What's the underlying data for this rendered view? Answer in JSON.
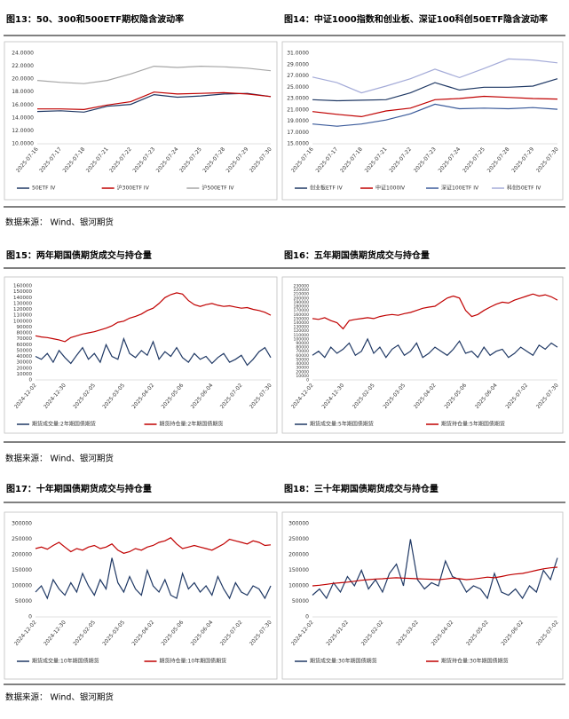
{
  "document": {
    "sources": [
      "数据来源： Wind、银河期货",
      "数据来源： Wind、银河期货",
      "数据来源： Wind、银河期货"
    ]
  },
  "chart_data": [
    {
      "type": "line",
      "title": "图13：50、300和500ETF期权隐含波动率",
      "categories": [
        "2025-07-16",
        "2025-07-17",
        "2025-07-18",
        "2025-07-21",
        "2025-07-22",
        "2025-07-23",
        "2025-07-24",
        "2025-07-25",
        "2025-07-28",
        "2025-07-29",
        "2025-07-30"
      ],
      "ylim": [
        10,
        24
      ],
      "yticks": [
        {
          "value": 10,
          "label": "10.0000"
        },
        {
          "value": 12,
          "label": "12.0000"
        },
        {
          "value": 14,
          "label": "14.0000"
        },
        {
          "value": 16,
          "label": "16.0000"
        },
        {
          "value": 18,
          "label": "18.0000"
        },
        {
          "value": 20,
          "label": "20.0000"
        },
        {
          "value": 22,
          "label": "22.0000"
        },
        {
          "value": 24,
          "label": "24.0000"
        }
      ],
      "series": [
        {
          "name": "50ETF IV",
          "color": "#1f3864",
          "values": [
            15.0,
            15.1,
            14.9,
            15.8,
            16.1,
            17.6,
            17.2,
            17.4,
            17.7,
            17.8,
            17.3
          ]
        },
        {
          "name": "沪300ETF IV",
          "color": "#c00000",
          "values": [
            15.4,
            15.4,
            15.3,
            16.0,
            16.5,
            18.0,
            17.7,
            17.8,
            17.9,
            17.7,
            17.3
          ]
        },
        {
          "name": "沪500ETF IV",
          "color": "#a6a6a6",
          "values": [
            19.8,
            19.5,
            19.3,
            19.8,
            20.8,
            22.0,
            21.8,
            22.0,
            21.9,
            21.7,
            21.3
          ]
        }
      ]
    },
    {
      "type": "line",
      "title": "图14：中证1000指数和创业板、深证100科创50ETF隐含波动率",
      "categories": [
        "2025-07-16",
        "2025-07-17",
        "2025-07-18",
        "2025-07-21",
        "2025-07-22",
        "2025-07-23",
        "2025-07-24",
        "2025-07-25",
        "2025-07-28",
        "2025-07-29",
        "2025-07-30"
      ],
      "ylim": [
        15,
        31
      ],
      "yticks": [
        {
          "value": 15,
          "label": "15.0000"
        },
        {
          "value": 17,
          "label": "17.0000"
        },
        {
          "value": 19,
          "label": "19.0000"
        },
        {
          "value": 21,
          "label": "21.0000"
        },
        {
          "value": 23,
          "label": "23.0000"
        },
        {
          "value": 25,
          "label": "25.0000"
        },
        {
          "value": 27,
          "label": "27.0000"
        },
        {
          "value": 29,
          "label": "29.0000"
        },
        {
          "value": 31,
          "label": "31.0000"
        }
      ],
      "series": [
        {
          "name": "创业板ETF IV",
          "color": "#1f3864",
          "values": [
            22.8,
            22.6,
            22.7,
            22.8,
            24.0,
            25.8,
            24.5,
            25.0,
            25.0,
            25.2,
            26.5
          ]
        },
        {
          "name": "中证1000IV",
          "color": "#c00000",
          "values": [
            20.7,
            20.2,
            19.8,
            20.8,
            21.3,
            22.8,
            23.0,
            23.4,
            23.2,
            23.0,
            22.9
          ]
        },
        {
          "name": "深证100ETF IV",
          "color": "#3a5a9a",
          "values": [
            18.5,
            18.1,
            18.5,
            19.2,
            20.3,
            22.0,
            21.2,
            21.3,
            21.2,
            21.4,
            21.1
          ]
        },
        {
          "name": "科创50ETF IV",
          "color": "#a4abd8",
          "values": [
            26.8,
            25.8,
            24.0,
            25.2,
            26.5,
            28.2,
            26.7,
            28.3,
            30.0,
            29.8,
            29.3
          ]
        }
      ]
    },
    {
      "type": "line",
      "title": "图15：两年期国债期货成交与持仓量",
      "categories": [
        "2024-12-02",
        null,
        null,
        null,
        null,
        "2024-12-30",
        null,
        null,
        null,
        null,
        "2025-02-05",
        null,
        null,
        null,
        null,
        "2025-03-05",
        null,
        null,
        null,
        null,
        "2025-04-02",
        null,
        null,
        null,
        null,
        "2025-05-06",
        null,
        null,
        null,
        null,
        "2025-06-04",
        null,
        null,
        null,
        null,
        "2025-07-02",
        null,
        null,
        null,
        null,
        "2025-07-30"
      ],
      "ylim": [
        0,
        160000
      ],
      "yticks": [
        0,
        10000,
        20000,
        30000,
        40000,
        50000,
        60000,
        70000,
        80000,
        90000,
        100000,
        110000,
        120000,
        130000,
        140000,
        150000,
        160000
      ],
      "series": [
        {
          "name": "期货成交量:2年期国债期货",
          "color": "#1f3864",
          "values": [
            40000,
            35000,
            45000,
            30000,
            50000,
            38000,
            28000,
            42000,
            55000,
            35000,
            45000,
            30000,
            60000,
            40000,
            35000,
            70000,
            45000,
            38000,
            50000,
            42000,
            65000,
            35000,
            48000,
            40000,
            55000,
            38000,
            30000,
            45000,
            35000,
            40000,
            28000,
            38000,
            45000,
            30000,
            35000,
            42000,
            25000,
            35000,
            48000,
            55000,
            38000
          ]
        },
        {
          "name": "期货持仓量:2年期国债期货",
          "color": "#c00000",
          "values": [
            75000,
            73000,
            72000,
            70000,
            68000,
            65000,
            72000,
            75000,
            78000,
            80000,
            82000,
            85000,
            88000,
            92000,
            98000,
            100000,
            105000,
            108000,
            112000,
            118000,
            122000,
            130000,
            140000,
            145000,
            148000,
            146000,
            135000,
            128000,
            125000,
            128000,
            130000,
            127000,
            125000,
            126000,
            124000,
            122000,
            123000,
            120000,
            118000,
            115000,
            110000
          ]
        }
      ]
    },
    {
      "type": "line",
      "title": "图16：五年期国债期货成交与持仓量",
      "categories": [
        "2024-12-02",
        null,
        null,
        null,
        null,
        "2024-12-30",
        null,
        null,
        null,
        null,
        "2025-02-05",
        null,
        null,
        null,
        null,
        "2025-03-05",
        null,
        null,
        null,
        null,
        "2025-04-02",
        null,
        null,
        null,
        null,
        "2025-05-06",
        null,
        null,
        null,
        null,
        "2025-06-04",
        null,
        null,
        null,
        null,
        "2025-07-02",
        null,
        null,
        null,
        null,
        "2025-07-30"
      ],
      "ylim": [
        0,
        230000
      ],
      "yticks": [
        0,
        10000,
        20000,
        30000,
        40000,
        50000,
        60000,
        70000,
        80000,
        90000,
        100000,
        110000,
        120000,
        130000,
        140000,
        150000,
        160000,
        170000,
        180000,
        190000,
        200000,
        210000,
        220000,
        230000
      ],
      "series": [
        {
          "name": "期货成交量:5年期国债期货",
          "color": "#1f3864",
          "values": [
            60000,
            70000,
            55000,
            80000,
            65000,
            75000,
            90000,
            60000,
            70000,
            100000,
            65000,
            80000,
            55000,
            75000,
            85000,
            60000,
            70000,
            90000,
            55000,
            65000,
            80000,
            70000,
            60000,
            75000,
            95000,
            65000,
            70000,
            55000,
            80000,
            60000,
            70000,
            75000,
            55000,
            65000,
            80000,
            70000,
            60000,
            85000,
            75000,
            90000,
            80000
          ]
        },
        {
          "name": "期货持仓量:5年期国债期货",
          "color": "#c00000",
          "values": [
            150000,
            148000,
            152000,
            145000,
            140000,
            125000,
            145000,
            148000,
            150000,
            152000,
            150000,
            155000,
            158000,
            160000,
            158000,
            162000,
            165000,
            170000,
            175000,
            178000,
            180000,
            190000,
            200000,
            205000,
            200000,
            170000,
            155000,
            160000,
            170000,
            178000,
            185000,
            190000,
            188000,
            195000,
            200000,
            205000,
            210000,
            205000,
            208000,
            203000,
            195000
          ]
        }
      ]
    },
    {
      "type": "line",
      "title": "图17：十年期国债期货成交与持仓量",
      "categories": [
        "2024-12-02",
        null,
        null,
        null,
        null,
        "2024-12-30",
        null,
        null,
        null,
        null,
        "2025-02-05",
        null,
        null,
        null,
        null,
        "2025-03-05",
        null,
        null,
        null,
        null,
        "2025-04-02",
        null,
        null,
        null,
        null,
        "2025-05-06",
        null,
        null,
        null,
        null,
        "2025-06-04",
        null,
        null,
        null,
        null,
        "2025-07-02",
        null,
        null,
        null,
        null,
        "2025-07-30"
      ],
      "ylim": [
        0,
        300000
      ],
      "yticks": [
        0,
        50000,
        100000,
        150000,
        200000,
        250000,
        300000
      ],
      "series": [
        {
          "name": "期货成交量:10年期国债期货",
          "color": "#1f3864",
          "values": [
            80000,
            100000,
            60000,
            120000,
            90000,
            70000,
            110000,
            80000,
            140000,
            100000,
            70000,
            120000,
            90000,
            190000,
            110000,
            80000,
            130000,
            90000,
            70000,
            150000,
            100000,
            80000,
            120000,
            70000,
            60000,
            140000,
            90000,
            110000,
            80000,
            100000,
            70000,
            130000,
            90000,
            60000,
            110000,
            80000,
            70000,
            100000,
            90000,
            60000,
            100000
          ]
        },
        {
          "name": "期货持仓量:10年期国债期货",
          "color": "#c00000",
          "values": [
            220000,
            225000,
            218000,
            230000,
            240000,
            225000,
            210000,
            220000,
            215000,
            225000,
            230000,
            220000,
            225000,
            235000,
            215000,
            205000,
            210000,
            220000,
            215000,
            225000,
            230000,
            240000,
            245000,
            255000,
            235000,
            220000,
            225000,
            230000,
            225000,
            220000,
            215000,
            225000,
            235000,
            250000,
            245000,
            240000,
            235000,
            245000,
            240000,
            230000,
            232000
          ]
        }
      ]
    },
    {
      "type": "line",
      "title": "图18：三十年期国债期货成交与持仓量",
      "categories": [
        "2024-12-02",
        null,
        null,
        null,
        null,
        "2025-01-02",
        null,
        null,
        null,
        null,
        "2025-02-02",
        null,
        null,
        null,
        null,
        "2025-03-02",
        null,
        null,
        null,
        null,
        "2025-04-02",
        null,
        null,
        null,
        null,
        "2025-05-02",
        null,
        null,
        null,
        null,
        "2025-06-02",
        null,
        null,
        null,
        null,
        "2025-07-02"
      ],
      "ylim": [
        0,
        300000
      ],
      "yticks": [
        0,
        50000,
        100000,
        150000,
        200000,
        250000,
        300000
      ],
      "series": [
        {
          "name": "期货成交量:30年期国债期货",
          "color": "#1f3864",
          "values": [
            70000,
            90000,
            60000,
            110000,
            80000,
            130000,
            100000,
            150000,
            90000,
            120000,
            80000,
            140000,
            170000,
            100000,
            250000,
            120000,
            90000,
            110000,
            100000,
            180000,
            130000,
            120000,
            80000,
            100000,
            90000,
            60000,
            140000,
            80000,
            70000,
            90000,
            60000,
            100000,
            80000,
            150000,
            120000,
            190000
          ]
        },
        {
          "name": "期货持仓量:30年期国债期货",
          "color": "#c00000",
          "values": [
            100000,
            102000,
            105000,
            108000,
            110000,
            112000,
            115000,
            118000,
            120000,
            122000,
            123000,
            125000,
            126000,
            125000,
            124000,
            123000,
            122000,
            121000,
            120000,
            122000,
            125000,
            123000,
            120000,
            122000,
            125000,
            128000,
            126000,
            130000,
            135000,
            138000,
            140000,
            145000,
            150000,
            155000,
            158000,
            160000
          ]
        }
      ]
    }
  ]
}
